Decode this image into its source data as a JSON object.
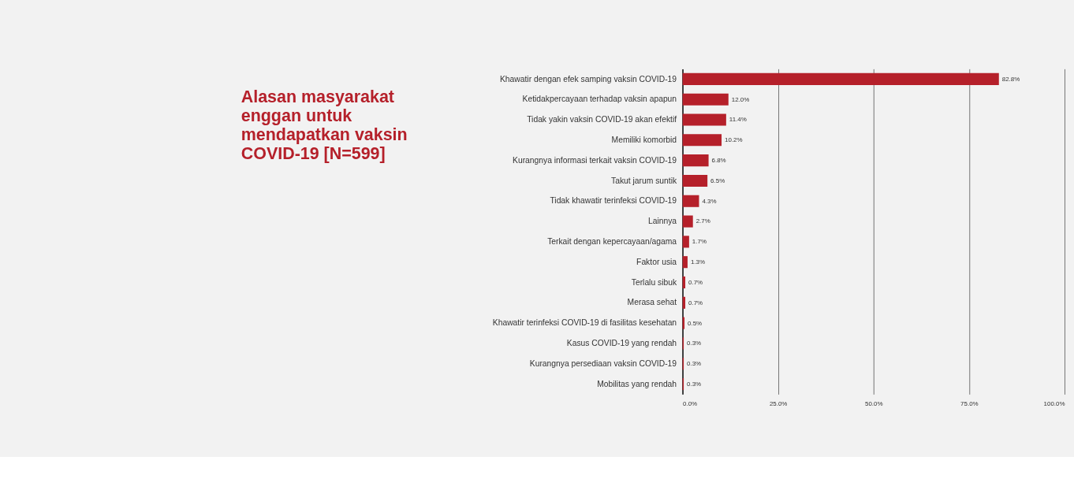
{
  "chart_data": {
    "type": "bar",
    "orientation": "horizontal",
    "title": "Alasan masyarakat enggan untuk mendapatkan vaksin COVID-19 [N=599]",
    "categories": [
      "Khawatir dengan efek samping vaksin COVID-19",
      "Ketidakpercayaan terhadap vaksin apapun",
      "Tidak yakin vaksin COVID-19 akan efektif",
      "Memiliki komorbid",
      "Kurangnya informasi terkait vaksin COVID-19",
      "Takut jarum suntik",
      "Tidak khawatir terinfeksi COVID-19",
      "Lainnya",
      "Terkait dengan kepercayaan/agama",
      "Faktor usia",
      "Terlalu sibuk",
      "Merasa sehat",
      "Khawatir terinfeksi COVID-19 di fasilitas kesehatan",
      "Kasus COVID-19 yang rendah",
      "Kurangnya persediaan vaksin COVID-19",
      "Mobilitas yang rendah"
    ],
    "values": [
      82.8,
      12.0,
      11.4,
      10.2,
      6.8,
      6.5,
      4.3,
      2.7,
      1.7,
      1.3,
      0.7,
      0.7,
      0.5,
      0.3,
      0.3,
      0.3
    ],
    "value_labels": [
      "82.8%",
      "12.0%",
      "11.4%",
      "10.2%",
      "6.8%",
      "6.5%",
      "4.3%",
      "2.7%",
      "1.7%",
      "1.3%",
      "0.7%",
      "0.7%",
      "0.5%",
      "0.3%",
      "0.3%",
      "0.3%"
    ],
    "color": "#b5202a",
    "xlim": [
      0,
      100
    ],
    "xticks": [
      {
        "value": 0,
        "label": "0.0%"
      },
      {
        "value": 25,
        "label": "25.0%"
      },
      {
        "value": 50,
        "label": "50.0%"
      },
      {
        "value": 75,
        "label": "75.0%"
      },
      {
        "value": 100,
        "label": "100.0%"
      }
    ],
    "grid": "x"
  }
}
